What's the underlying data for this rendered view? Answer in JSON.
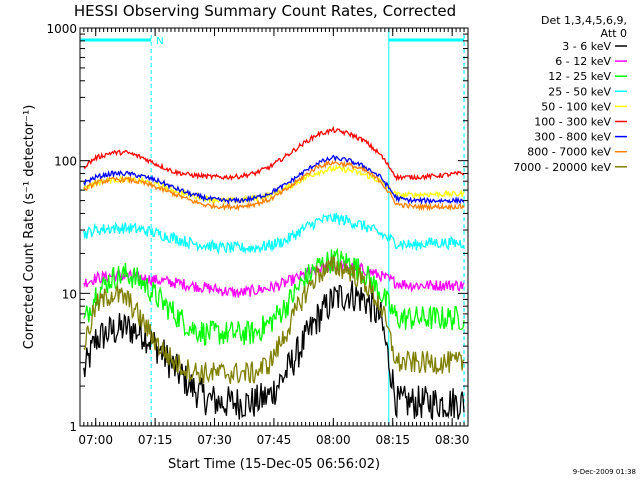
{
  "chart_data": {
    "type": "line",
    "title": "HESSI Observing Summary Count Rates, Corrected",
    "xlabel": "Start Time (15-Dec-05 06:56:02)",
    "ylabel": "Corrected Count Rate (s⁻¹ detector⁻¹)",
    "yscale": "log",
    "ylim": [
      1,
      1000
    ],
    "y_tick_labels": [
      "1",
      "10",
      "100",
      "1000"
    ],
    "xlim": [
      "06:56:02",
      "08:34:00"
    ],
    "x_tick_labels": [
      "07:00",
      "07:15",
      "07:30",
      "07:45",
      "08:00",
      "08:15",
      "08:30"
    ],
    "x_ticks": [
      "07:00",
      "07:15",
      "07:30",
      "07:45",
      "08:00",
      "08:15",
      "08:30"
    ],
    "legend_position": "right",
    "legend_header": [
      "Det 1,3,4,5,6,9,",
      "Att 0"
    ],
    "timestamp": "9-Dec-2009 01:38",
    "flag_text": "N",
    "flag_intervals": [
      [
        "06:56:02",
        "07:14:00"
      ],
      [
        "08:14:00",
        "08:33:00"
      ]
    ],
    "time_points": [
      "06:57",
      "07:00",
      "07:04",
      "07:08",
      "07:12",
      "07:16",
      "07:20",
      "07:24",
      "07:28",
      "07:32",
      "07:36",
      "07:40",
      "07:44",
      "07:48",
      "07:52",
      "07:56",
      "08:00",
      "08:04",
      "08:08",
      "08:12",
      "08:16",
      "08:20",
      "08:24",
      "08:28",
      "08:32"
    ],
    "series": [
      {
        "name": "3 - 6 keV",
        "color": "#000000",
        "noise": 0.3,
        "values": [
          2.5,
          4.5,
          5.2,
          5.5,
          5.0,
          3.8,
          2.7,
          2.0,
          1.6,
          1.5,
          1.5,
          1.5,
          1.7,
          2.5,
          4.0,
          6.5,
          9.0,
          10.0,
          9.0,
          6.5,
          1.5,
          1.5,
          1.5,
          1.5,
          1.5
        ]
      },
      {
        "name": "6 - 12 keV",
        "color": "#ff00ff",
        "noise": 0.1,
        "values": [
          12,
          13,
          13.5,
          13.5,
          13,
          12.5,
          12,
          11.5,
          11,
          10.5,
          10,
          10.5,
          11,
          12,
          13.5,
          15,
          16,
          16,
          15,
          13.5,
          12,
          11.5,
          11.5,
          11.5,
          11.5
        ]
      },
      {
        "name": "12 - 25 keV",
        "color": "#00ff00",
        "noise": 0.22,
        "values": [
          6,
          10,
          13,
          14,
          12,
          9,
          7,
          5.5,
          5,
          5,
          5,
          5,
          6,
          8,
          12,
          16,
          18,
          17,
          14,
          10,
          6.5,
          6.5,
          6.5,
          6.5,
          6.5
        ]
      },
      {
        "name": "25 - 50 keV",
        "color": "#00ffff",
        "noise": 0.1,
        "values": [
          28,
          30,
          31,
          31,
          30,
          28,
          26,
          24,
          23,
          22,
          22,
          22,
          23,
          25,
          30,
          35,
          37,
          35,
          32,
          28,
          24,
          23,
          24,
          24,
          24
        ]
      },
      {
        "name": "50 - 100 keV",
        "color": "#ffff00",
        "noise": 0.05,
        "values": [
          62,
          68,
          72,
          72,
          70,
          65,
          60,
          55,
          52,
          50,
          50,
          52,
          55,
          62,
          72,
          82,
          87,
          85,
          78,
          70,
          55,
          55,
          56,
          56,
          56
        ]
      },
      {
        "name": "100 - 300 keV",
        "color": "#ff0000",
        "noise": 0.04,
        "values": [
          90,
          105,
          115,
          115,
          105,
          92,
          82,
          78,
          76,
          75,
          76,
          80,
          90,
          108,
          132,
          158,
          170,
          160,
          140,
          110,
          75,
          75,
          76,
          78,
          80
        ]
      },
      {
        "name": "300 - 800 keV",
        "color": "#0000ff",
        "noise": 0.04,
        "values": [
          68,
          75,
          80,
          80,
          76,
          70,
          62,
          56,
          52,
          50,
          50,
          52,
          57,
          66,
          80,
          96,
          105,
          100,
          90,
          75,
          52,
          50,
          50,
          50,
          50
        ]
      },
      {
        "name": "800 - 7000 keV",
        "color": "#ff8000",
        "noise": 0.04,
        "values": [
          60,
          68,
          72,
          72,
          68,
          62,
          56,
          50,
          46,
          45,
          45,
          47,
          51,
          60,
          74,
          90,
          97,
          93,
          84,
          70,
          47,
          45,
          45,
          45,
          45
        ]
      },
      {
        "name": "7000 - 20000 keV",
        "color": "#808000",
        "noise": 0.2,
        "values": [
          4,
          8,
          10,
          9,
          6,
          4,
          3,
          2.6,
          2.5,
          2.5,
          2.5,
          2.5,
          3,
          5,
          9,
          14,
          16,
          15,
          12,
          8,
          3,
          3,
          3,
          3,
          3
        ]
      }
    ]
  }
}
